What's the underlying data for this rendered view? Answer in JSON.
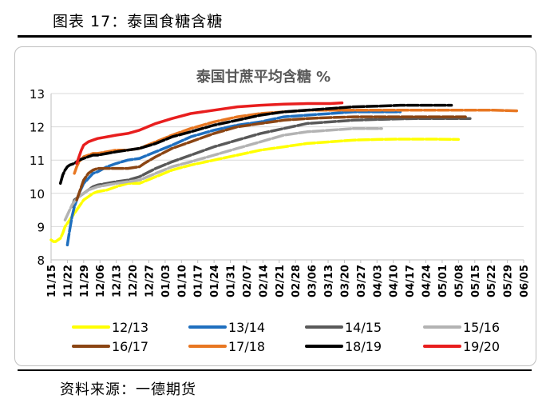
{
  "figure": {
    "title": "图表 17：泰国食糖含糖",
    "source": "资料来源：一德期货"
  },
  "chart_data": {
    "type": "line",
    "title": "泰国甘蔗平均含糖 %",
    "ylim": [
      8,
      13
    ],
    "yticks": [
      8,
      9,
      10,
      11,
      12,
      13
    ],
    "x_tick_labels": [
      "11/15",
      "11/22",
      "11/29",
      "12/06",
      "12/13",
      "12/20",
      "12/27",
      "01/03",
      "01/10",
      "01/17",
      "01/24",
      "01/31",
      "02/07",
      "02/14",
      "02/21",
      "02/28",
      "03/06",
      "03/13",
      "03/20",
      "03/27",
      "04/03",
      "04/10",
      "04/17",
      "04/24",
      "05/01",
      "05/08",
      "05/15",
      "05/22",
      "05/29",
      "06/05"
    ],
    "x_unit": "days from 11/15",
    "legend_position": "bottom",
    "series": [
      {
        "name": "12/13",
        "color": "#ffff00",
        "dashed": true,
        "x": [
          0,
          1,
          2,
          3,
          4,
          5,
          6,
          8,
          10,
          12,
          14,
          16,
          18,
          20,
          24,
          28,
          33,
          38,
          45,
          52,
          60,
          70,
          80,
          90,
          100,
          110,
          120,
          130,
          140,
          148,
          152,
          158,
          165,
          175
        ],
        "y": [
          8.6,
          8.55,
          8.55,
          8.6,
          8.65,
          8.8,
          9.0,
          9.2,
          9.4,
          9.6,
          9.8,
          9.9,
          10.0,
          10.05,
          10.1,
          10.2,
          10.3,
          10.3,
          10.5,
          10.7,
          10.85,
          11.0,
          11.15,
          11.3,
          11.4,
          11.5,
          11.55,
          11.6,
          11.62,
          11.63,
          11.63,
          11.63,
          11.63,
          11.62
        ]
      },
      {
        "name": "13/14",
        "color": "#1f6fbf",
        "dashed": true,
        "x": [
          7,
          8,
          9,
          10,
          12,
          14,
          16,
          18,
          20,
          24,
          28,
          33,
          38,
          45,
          52,
          60,
          70,
          80,
          90,
          100,
          110,
          120,
          130,
          140,
          150
        ],
        "y": [
          8.45,
          8.9,
          9.3,
          9.6,
          10.0,
          10.3,
          10.45,
          10.6,
          10.65,
          10.8,
          10.9,
          11.0,
          11.05,
          11.25,
          11.45,
          11.7,
          11.9,
          12.05,
          12.15,
          12.3,
          12.35,
          12.4,
          12.45,
          12.45,
          12.45
        ]
      },
      {
        "name": "14/15",
        "color": "#595959",
        "dashed": true,
        "x": [
          9,
          10,
          12,
          14,
          16,
          18,
          20,
          24,
          28,
          33,
          38,
          45,
          52,
          60,
          70,
          80,
          90,
          100,
          110,
          120,
          130,
          140,
          150,
          160,
          170,
          180
        ],
        "y": [
          9.6,
          9.8,
          9.9,
          10.0,
          10.1,
          10.2,
          10.25,
          10.3,
          10.35,
          10.4,
          10.5,
          10.75,
          10.95,
          11.15,
          11.4,
          11.6,
          11.8,
          11.95,
          12.1,
          12.15,
          12.2,
          12.22,
          12.24,
          12.25,
          12.25,
          12.25
        ]
      },
      {
        "name": "15/16",
        "color": "#b3b3b3",
        "dashed": true,
        "x": [
          6,
          7,
          8,
          9,
          10,
          12,
          14,
          16,
          18,
          20,
          24,
          28,
          33,
          38,
          45,
          52,
          60,
          70,
          80,
          90,
          100,
          110,
          120,
          130,
          138,
          142
        ],
        "y": [
          9.2,
          9.35,
          9.5,
          9.65,
          9.75,
          9.9,
          10.0,
          10.1,
          10.15,
          10.2,
          10.25,
          10.3,
          10.35,
          10.4,
          10.6,
          10.8,
          10.95,
          11.15,
          11.35,
          11.55,
          11.75,
          11.85,
          11.9,
          11.95,
          11.95,
          11.95
        ]
      },
      {
        "name": "16/17",
        "color": "#8b4513",
        "dashed": true,
        "x": [
          11,
          12,
          13,
          14,
          16,
          18,
          20,
          24,
          28,
          33,
          38,
          40,
          45,
          52,
          60,
          70,
          80,
          90,
          100,
          110,
          120,
          130,
          140,
          150,
          160,
          170,
          178
        ],
        "y": [
          9.8,
          10.0,
          10.2,
          10.4,
          10.6,
          10.7,
          10.75,
          10.75,
          10.75,
          10.75,
          10.8,
          10.9,
          11.1,
          11.35,
          11.55,
          11.8,
          12.0,
          12.1,
          12.2,
          12.25,
          12.28,
          12.3,
          12.3,
          12.3,
          12.3,
          12.3,
          12.3
        ]
      },
      {
        "name": "17/18",
        "color": "#e87722",
        "dashed": true,
        "x": [
          10,
          11,
          12,
          14,
          16,
          18,
          20,
          24,
          28,
          33,
          38,
          45,
          52,
          60,
          70,
          80,
          90,
          100,
          110,
          120,
          130,
          140,
          150,
          160,
          170,
          180,
          190,
          200
        ],
        "y": [
          10.6,
          10.8,
          10.95,
          11.1,
          11.15,
          11.2,
          11.2,
          11.25,
          11.3,
          11.3,
          11.35,
          11.55,
          11.75,
          11.95,
          12.15,
          12.3,
          12.4,
          12.45,
          12.5,
          12.5,
          12.5,
          12.5,
          12.5,
          12.5,
          12.5,
          12.5,
          12.5,
          12.48
        ]
      },
      {
        "name": "18/19",
        "color": "#000000",
        "dashed": true,
        "x": [
          4,
          5,
          6,
          7,
          8,
          10,
          12,
          14,
          16,
          18,
          20,
          24,
          28,
          33,
          38,
          45,
          52,
          60,
          70,
          80,
          90,
          100,
          110,
          120,
          130,
          140,
          150,
          160,
          170,
          172
        ],
        "y": [
          10.3,
          10.55,
          10.7,
          10.8,
          10.85,
          10.9,
          11.0,
          11.05,
          11.1,
          11.15,
          11.15,
          11.2,
          11.25,
          11.3,
          11.35,
          11.5,
          11.7,
          11.85,
          12.05,
          12.2,
          12.35,
          12.45,
          12.5,
          12.55,
          12.6,
          12.62,
          12.65,
          12.65,
          12.65,
          12.65
        ]
      },
      {
        "name": "19/20",
        "color": "#e81e1e",
        "dashed": false,
        "x": [
          11,
          12,
          13,
          14,
          16,
          18,
          20,
          24,
          28,
          33,
          38,
          45,
          52,
          60,
          70,
          80,
          90,
          100,
          110,
          120,
          125
        ],
        "y": [
          10.9,
          11.1,
          11.3,
          11.45,
          11.55,
          11.6,
          11.65,
          11.7,
          11.75,
          11.8,
          11.9,
          12.1,
          12.25,
          12.4,
          12.5,
          12.6,
          12.65,
          12.68,
          12.7,
          12.7,
          12.72
        ]
      }
    ]
  }
}
